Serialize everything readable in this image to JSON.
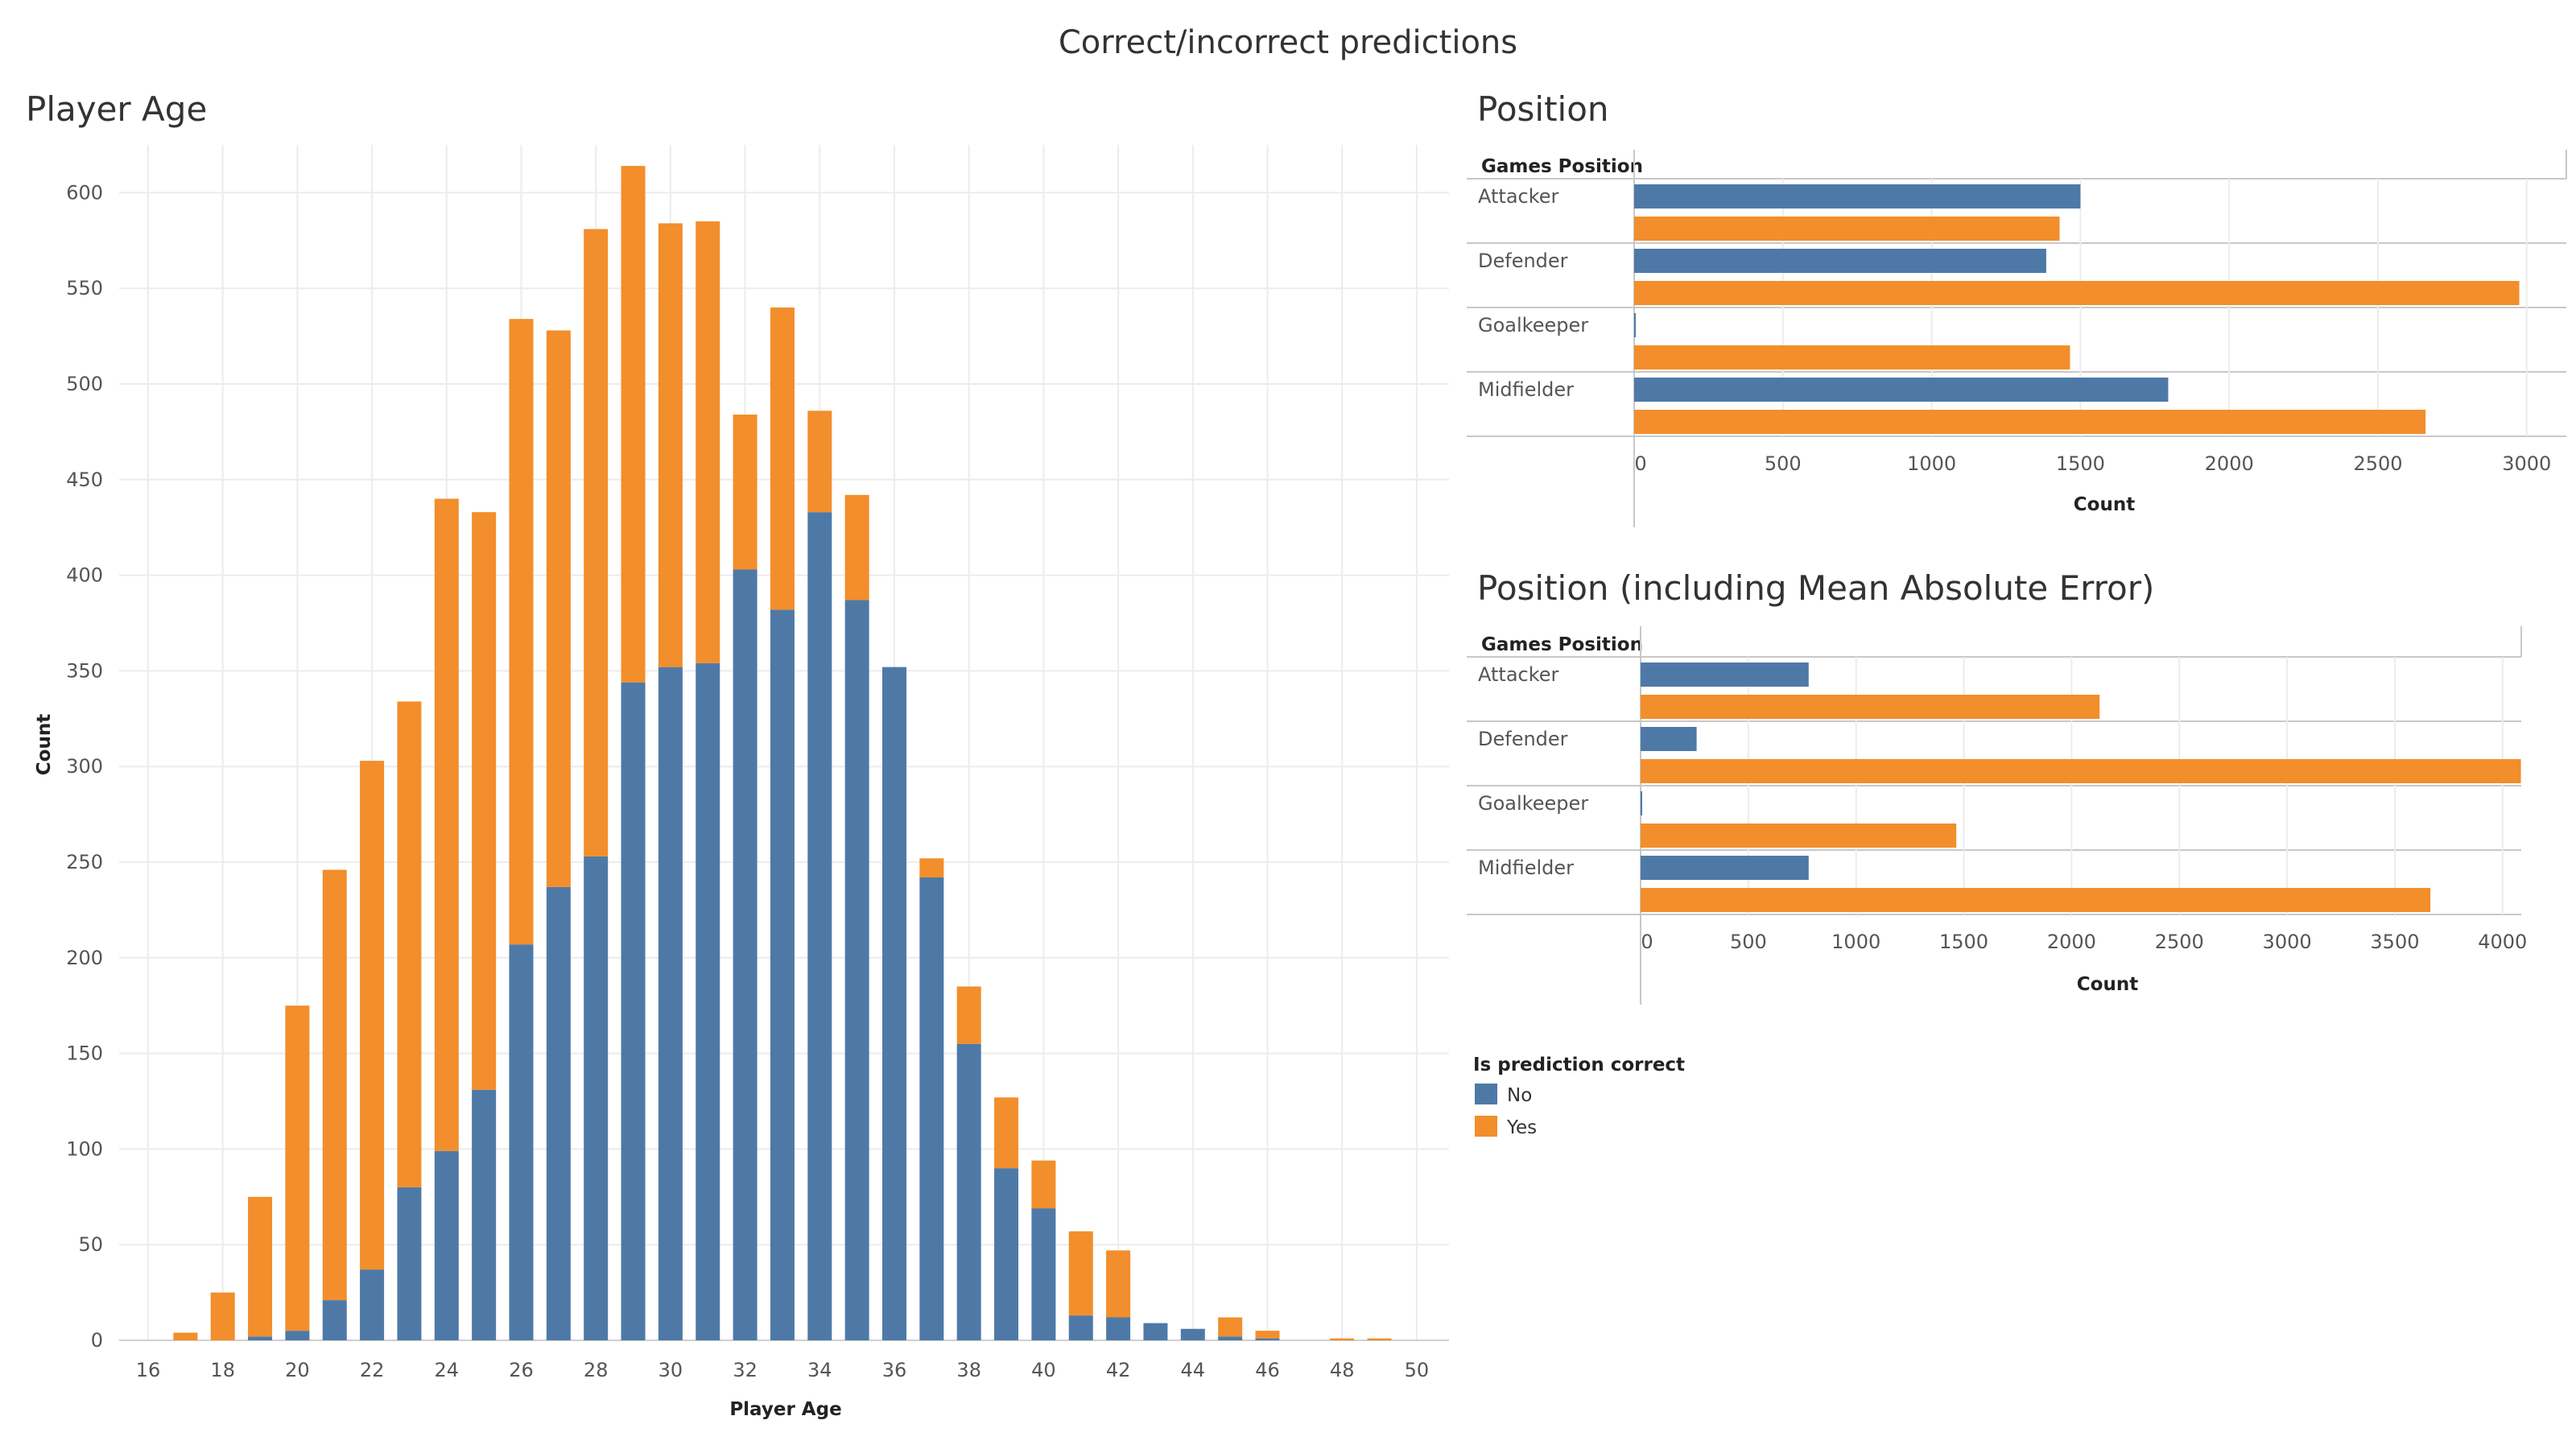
{
  "dashboard": {
    "title": "Correct/incorrect predictions"
  },
  "colors": {
    "no": "#4e79a7",
    "yes": "#f28e2b"
  },
  "legend": {
    "title": "Is prediction correct",
    "items": [
      {
        "label": "No",
        "color": "#4e79a7"
      },
      {
        "label": "Yes",
        "color": "#f28e2b"
      }
    ]
  },
  "chart_data": [
    {
      "id": "age",
      "type": "bar",
      "stacked": true,
      "title": "Player Age",
      "xlabel": "Player Age",
      "ylabel": "Count",
      "ylim": [
        0,
        625
      ],
      "yticks": [
        0,
        50,
        100,
        150,
        200,
        250,
        300,
        350,
        400,
        450,
        500,
        550,
        600
      ],
      "xticks": [
        16,
        18,
        20,
        22,
        24,
        26,
        28,
        30,
        32,
        34,
        36,
        38,
        40,
        42,
        44,
        46,
        48,
        50
      ],
      "categories": [
        16,
        17,
        18,
        19,
        20,
        21,
        22,
        23,
        24,
        25,
        26,
        27,
        28,
        29,
        30,
        31,
        32,
        33,
        34,
        35,
        36,
        37,
        38,
        39,
        40,
        41,
        42,
        43,
        44,
        45,
        46,
        47,
        48,
        49,
        50
      ],
      "series": [
        {
          "name": "No",
          "values": [
            0,
            0,
            0,
            2,
            5,
            21,
            37,
            80,
            99,
            131,
            207,
            237,
            253,
            344,
            352,
            354,
            403,
            382,
            433,
            387,
            352,
            242,
            155,
            90,
            69,
            13,
            12,
            9,
            6,
            2,
            1,
            0,
            0,
            0,
            0
          ]
        },
        {
          "name": "Yes",
          "values": [
            0,
            4,
            25,
            73,
            170,
            225,
            266,
            254,
            341,
            302,
            327,
            291,
            328,
            270,
            232,
            231,
            81,
            158,
            53,
            55,
            0,
            10,
            30,
            37,
            25,
            44,
            35,
            0,
            0,
            10,
            4,
            0,
            1,
            1,
            0
          ]
        }
      ],
      "grid": true,
      "legend": "right"
    },
    {
      "id": "position",
      "type": "bar",
      "orientation": "horizontal",
      "title": "Position",
      "row_header": "Games Position",
      "xlabel": "Count",
      "xlim": [
        0,
        3050
      ],
      "xticks": [
        0,
        500,
        1000,
        1500,
        2000,
        2500,
        3000
      ],
      "categories": [
        "Attacker",
        "Defender",
        "Goalkeeper",
        "Midfielder"
      ],
      "series": [
        {
          "name": "No",
          "values": [
            1500,
            1385,
            5,
            1795
          ]
        },
        {
          "name": "Yes",
          "values": [
            1430,
            2975,
            1465,
            2660
          ]
        }
      ],
      "grid": true
    },
    {
      "id": "position_mae",
      "type": "bar",
      "orientation": "horizontal",
      "title": "Position (including Mean Absolute Error)",
      "row_header": "Games Position",
      "xlabel": "Count",
      "xlim": [
        0,
        4100
      ],
      "xticks": [
        0,
        500,
        1000,
        1500,
        2000,
        2500,
        3000,
        3500,
        4000
      ],
      "categories": [
        "Attacker",
        "Defender",
        "Goalkeeper",
        "Midfielder"
      ],
      "series": [
        {
          "name": "No",
          "values": [
            780,
            260,
            5,
            780
          ]
        },
        {
          "name": "Yes",
          "values": [
            2130,
            4085,
            1465,
            3665
          ]
        }
      ],
      "grid": true
    }
  ]
}
